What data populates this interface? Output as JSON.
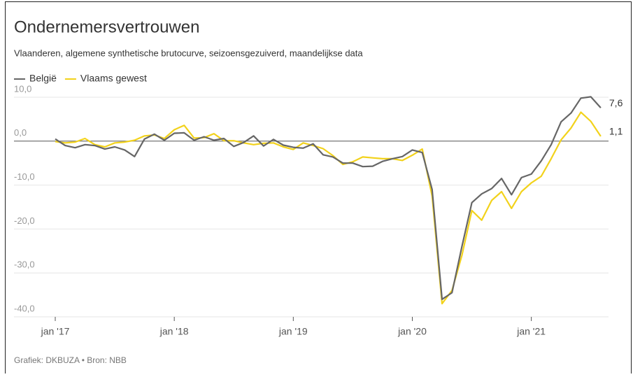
{
  "chart_data": {
    "type": "line",
    "title": "Ondernemersvertrouwen",
    "subtitle": "Vlaanderen, algemene synthetische brutocurve, seizoensgezuiverd, maandelijkse data",
    "source": "Grafiek: DKBUZA • Bron: NBB",
    "categories": [
      "jan '17",
      null,
      null,
      null,
      null,
      null,
      null,
      null,
      null,
      null,
      null,
      null,
      "jan '18",
      null,
      null,
      null,
      null,
      null,
      null,
      null,
      null,
      null,
      null,
      null,
      "jan '19",
      null,
      null,
      null,
      null,
      null,
      null,
      null,
      null,
      null,
      null,
      null,
      "jan '20",
      null,
      null,
      null,
      null,
      null,
      null,
      null,
      null,
      null,
      null,
      null,
      "jan '21",
      null,
      null,
      null,
      null,
      null,
      null,
      null
    ],
    "series": [
      {
        "name": "België",
        "color": "#666666",
        "values": [
          0.5,
          -1.0,
          -1.5,
          -0.8,
          -1.0,
          -1.8,
          -1.3,
          -2.0,
          -3.5,
          0.5,
          1.6,
          0.2,
          1.8,
          1.9,
          0.2,
          1.0,
          0.2,
          0.6,
          -1.2,
          -0.3,
          1.2,
          -1.1,
          0.4,
          -0.9,
          -1.4,
          -1.6,
          -0.6,
          -3.1,
          -3.6,
          -5.0,
          -5.0,
          -5.8,
          -5.7,
          -4.6,
          -4.0,
          -3.5,
          -2.0,
          -2.6,
          -11.0,
          -36.0,
          -34.5,
          -24.0,
          -14.0,
          -12.0,
          -10.8,
          -8.5,
          -12.2,
          -8.3,
          -7.5,
          -4.5,
          -0.8,
          4.4,
          6.4,
          9.8,
          10.1,
          7.6
        ],
        "value_labels": [
          null,
          null,
          null,
          null,
          null,
          null,
          null,
          null,
          null,
          null,
          null,
          null,
          null,
          null,
          null,
          null,
          null,
          null,
          null,
          null,
          null,
          null,
          null,
          null,
          null,
          null,
          null,
          null,
          null,
          null,
          null,
          null,
          null,
          null,
          null,
          null,
          null,
          null,
          null,
          null,
          null,
          null,
          null,
          null,
          null,
          null,
          null,
          null,
          null,
          null,
          null,
          null,
          null,
          null,
          null,
          "7,6"
        ]
      },
      {
        "name": "Vlaams gewest",
        "color": "#f2d21b",
        "values": [
          -0.1,
          -0.4,
          -0.2,
          0.6,
          -0.8,
          -1.3,
          -0.4,
          -0.2,
          0.2,
          1.2,
          1.4,
          0.6,
          2.6,
          3.6,
          0.7,
          0.8,
          1.7,
          0.1,
          0.1,
          -0.4,
          -0.8,
          -0.5,
          -0.4,
          -1.3,
          -1.9,
          -0.4,
          -1.0,
          -1.7,
          -3.3,
          -5.3,
          -4.7,
          -3.6,
          -3.8,
          -4.0,
          -4.0,
          -4.4,
          -3.2,
          -1.8,
          -12.5,
          -37.0,
          -34.0,
          -26.0,
          -15.8,
          -18.0,
          -13.5,
          -11.5,
          -15.3,
          -11.5,
          -9.5,
          -8.0,
          -4.0,
          0.3,
          3.0,
          6.6,
          4.5,
          1.1
        ],
        "value_labels": [
          null,
          null,
          null,
          null,
          null,
          null,
          null,
          null,
          null,
          null,
          null,
          null,
          null,
          null,
          null,
          null,
          null,
          null,
          null,
          null,
          null,
          null,
          null,
          null,
          null,
          null,
          null,
          null,
          null,
          null,
          null,
          null,
          null,
          null,
          null,
          null,
          null,
          null,
          null,
          null,
          null,
          null,
          null,
          null,
          null,
          null,
          null,
          null,
          null,
          null,
          null,
          null,
          null,
          null,
          null,
          "1,1"
        ]
      }
    ],
    "ylim": [
      -40,
      10
    ],
    "yticks": [
      {
        "value": -40,
        "label": "-40,0"
      },
      {
        "value": -30,
        "label": "-30,0"
      },
      {
        "value": -20,
        "label": "-20,0"
      },
      {
        "value": -10,
        "label": "-10,0"
      },
      {
        "value": 0,
        "label": "0,0"
      },
      {
        "value": 10,
        "label": "10,0"
      }
    ],
    "grid": true
  }
}
